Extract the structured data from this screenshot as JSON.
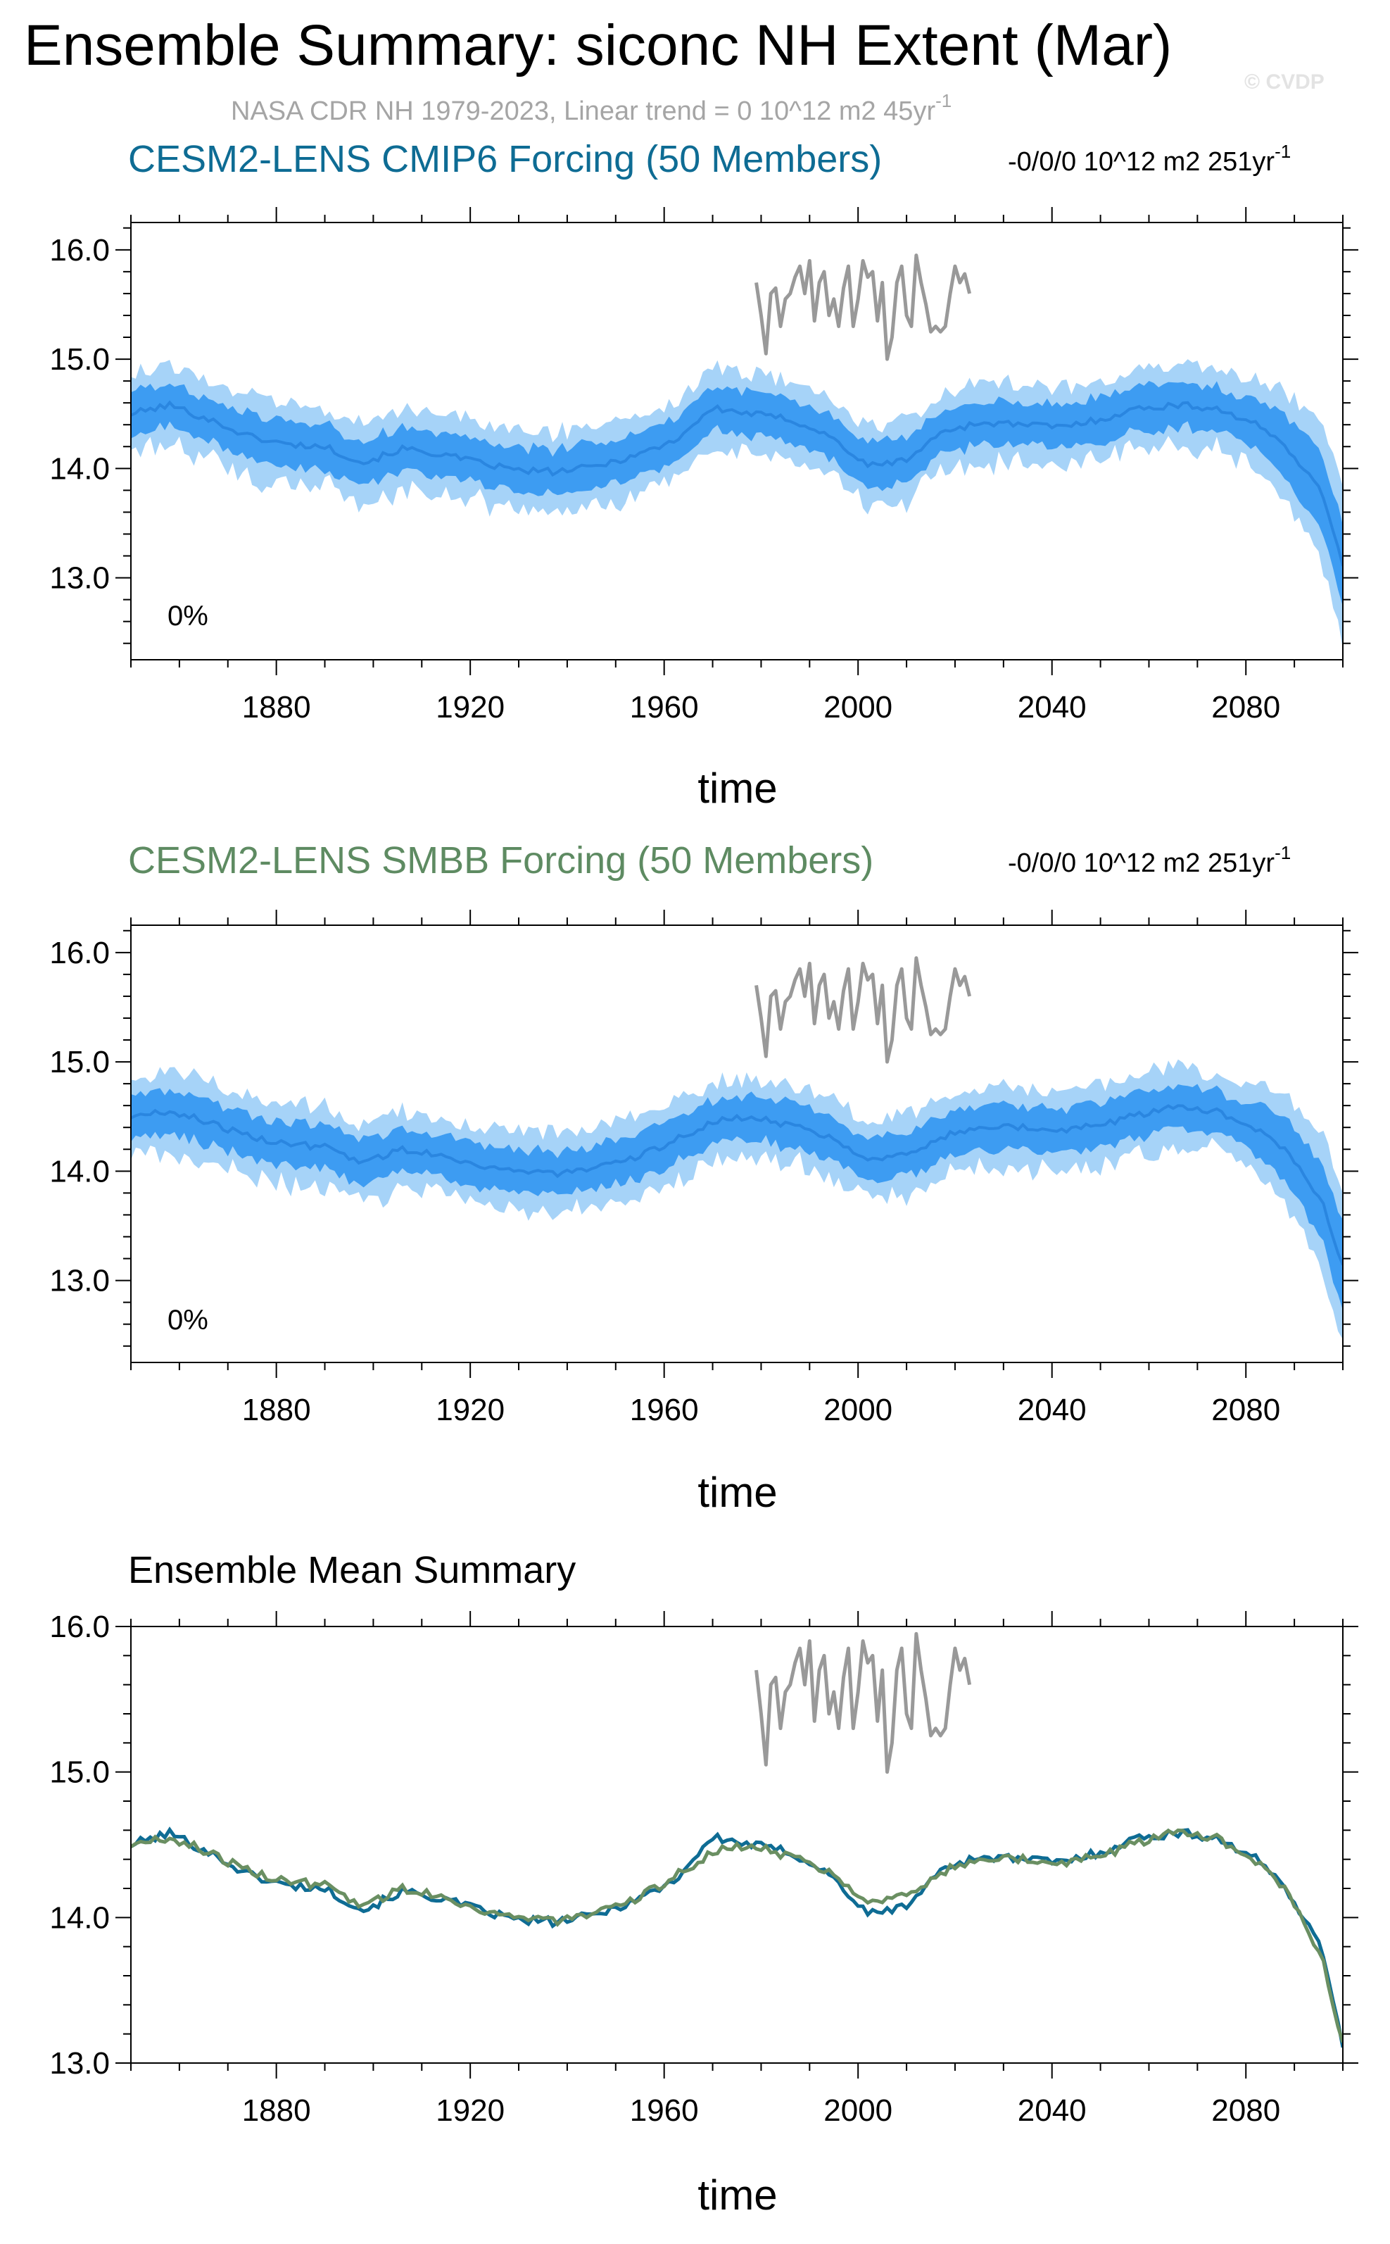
{
  "figure": {
    "title": "Ensemble Summary: siconc NH Extent (Mar)",
    "subtitle": "NASA CDR NH 1979-2023, Linear trend = 0 10^12 m2 45yr",
    "subtitle_sup": "-1",
    "watermark": "© CVDP"
  },
  "colors": {
    "spread_outer": "#a6d3f8",
    "spread_inner": "#3d9cf2",
    "ensemble_mean_band": "#2a86e0",
    "observations": "#999999",
    "cmip6_title": "#0e6c94",
    "smbb_title": "#5e8b62",
    "cmip6_mean_line": "#0e6c94",
    "smbb_mean_line": "#6a8f62"
  },
  "chart_data": [
    {
      "type": "area",
      "title": "CESM2-LENS CMIP6 Forcing (50 Members)",
      "trend_label": "-0/0/0 10^12 m2 251yr",
      "trend_sup": "-1",
      "corner_text": "0%",
      "xlabel": "time",
      "ylabel": "",
      "xlim": [
        1850,
        2100
      ],
      "ylim": [
        12.25,
        16.25
      ],
      "xticks": [
        "1880",
        "1920",
        "1960",
        "2000",
        "2040",
        "2080"
      ],
      "yticks": [
        "13.0",
        "14.0",
        "15.0",
        "16.0"
      ],
      "ensemble_mean_knots": {
        "x": [
          1850,
          1858,
          1866,
          1874,
          1882,
          1890,
          1898,
          1906,
          1914,
          1922,
          1930,
          1938,
          1946,
          1954,
          1962,
          1970,
          1978,
          1986,
          1994,
          2002,
          2010,
          2018,
          2026,
          2034,
          2042,
          2050,
          2058,
          2066,
          2074,
          2082,
          2088,
          2092,
          2096,
          2100
        ],
        "y": [
          14.5,
          14.58,
          14.45,
          14.3,
          14.22,
          14.2,
          14.05,
          14.18,
          14.13,
          14.05,
          13.98,
          13.97,
          14.02,
          14.12,
          14.25,
          14.55,
          14.5,
          14.45,
          14.3,
          14.02,
          14.08,
          14.35,
          14.42,
          14.4,
          14.38,
          14.45,
          14.55,
          14.58,
          14.55,
          14.4,
          14.22,
          14.0,
          13.75,
          13.12
        ]
      },
      "inner_halfwidth": 0.2,
      "outer_halfwidth": 0.36,
      "outer_halfwidth_end": 0.7
    },
    {
      "type": "area",
      "title": "CESM2-LENS SMBB Forcing (50 Members)",
      "trend_label": "-0/0/0 10^12 m2 251yr",
      "trend_sup": "-1",
      "corner_text": "0%",
      "xlabel": "time",
      "ylabel": "",
      "xlim": [
        1850,
        2100
      ],
      "ylim": [
        12.25,
        16.25
      ],
      "xticks": [
        "1880",
        "1920",
        "1960",
        "2000",
        "2040",
        "2080"
      ],
      "yticks": [
        "13.0",
        "14.0",
        "15.0",
        "16.0"
      ],
      "ensemble_mean_knots": {
        "x": [
          1850,
          1858,
          1866,
          1874,
          1882,
          1890,
          1898,
          1906,
          1914,
          1922,
          1930,
          1938,
          1946,
          1954,
          1962,
          1970,
          1978,
          1986,
          1994,
          2002,
          2010,
          2018,
          2026,
          2034,
          2042,
          2050,
          2058,
          2066,
          2074,
          2082,
          2088,
          2092,
          2096,
          2100
        ],
        "y": [
          14.5,
          14.55,
          14.45,
          14.32,
          14.25,
          14.22,
          14.08,
          14.2,
          14.15,
          14.05,
          14.0,
          13.98,
          14.02,
          14.12,
          14.28,
          14.45,
          14.5,
          14.42,
          14.32,
          14.12,
          14.15,
          14.32,
          14.42,
          14.4,
          14.38,
          14.42,
          14.52,
          14.6,
          14.55,
          14.38,
          14.2,
          13.95,
          13.7,
          13.12
        ]
      },
      "inner_halfwidth": 0.2,
      "outer_halfwidth": 0.36,
      "outer_halfwidth_end": 0.7
    },
    {
      "type": "line",
      "title": "Ensemble Mean Summary",
      "xlabel": "time",
      "ylabel": "",
      "xlim": [
        1850,
        2100
      ],
      "ylim": [
        13.0,
        16.0
      ],
      "xticks": [
        "1880",
        "1920",
        "1960",
        "2000",
        "2040",
        "2080"
      ],
      "yticks": [
        "13.0",
        "14.0",
        "15.0",
        "16.0"
      ]
    }
  ],
  "observations": {
    "name": "NASA CDR NH",
    "x": [
      1979,
      1980,
      1981,
      1982,
      1983,
      1984,
      1985,
      1986,
      1987,
      1988,
      1989,
      1990,
      1991,
      1992,
      1993,
      1994,
      1995,
      1996,
      1997,
      1998,
      1999,
      2000,
      2001,
      2002,
      2003,
      2004,
      2005,
      2006,
      2007,
      2008,
      2009,
      2010,
      2011,
      2012,
      2013,
      2014,
      2015,
      2016,
      2017,
      2018,
      2019,
      2020,
      2021,
      2022,
      2023
    ],
    "y": [
      15.7,
      15.4,
      15.05,
      15.6,
      15.65,
      15.3,
      15.55,
      15.6,
      15.75,
      15.85,
      15.6,
      15.9,
      15.35,
      15.7,
      15.8,
      15.4,
      15.55,
      15.3,
      15.65,
      15.85,
      15.3,
      15.55,
      15.9,
      15.75,
      15.8,
      15.35,
      15.7,
      15.0,
      15.2,
      15.7,
      15.85,
      15.4,
      15.3,
      15.95,
      15.7,
      15.5,
      15.25,
      15.3,
      15.25,
      15.3,
      15.6,
      15.85,
      15.7,
      15.78,
      15.6
    ]
  }
}
